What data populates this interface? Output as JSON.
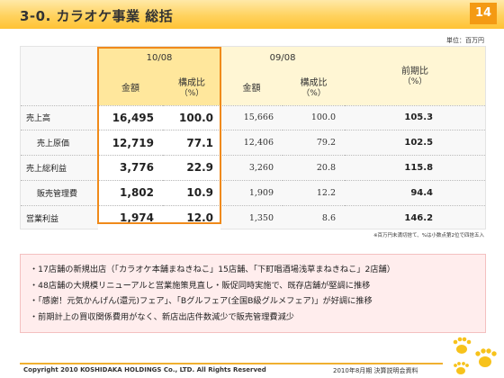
{
  "header": {
    "title": "3-0. カラオケ事業 総括",
    "page_number": "14"
  },
  "unit_note": "単位：百万円",
  "table": {
    "group_headers": {
      "current": "10/08",
      "previous": "09/08",
      "ratio": "前期比",
      "ratio_unit": "（%）"
    },
    "sub_headers": {
      "amount": "金額",
      "composition": "構成比",
      "composition_unit": "（%）"
    },
    "rows": [
      {
        "label": "売上高",
        "cur_amount": "16,495",
        "cur_comp": "100.0",
        "prev_amount": "15,666",
        "prev_comp": "100.0",
        "ratio": "105.3"
      },
      {
        "label": "売上原価",
        "cur_amount": "12,719",
        "cur_comp": "77.1",
        "prev_amount": "12,406",
        "prev_comp": "79.2",
        "ratio": "102.5"
      },
      {
        "label": "売上総利益",
        "cur_amount": "3,776",
        "cur_comp": "22.9",
        "prev_amount": "3,260",
        "prev_comp": "20.8",
        "ratio": "115.8"
      },
      {
        "label": "販売管理費",
        "cur_amount": "1,802",
        "cur_comp": "10.9",
        "prev_amount": "1,909",
        "prev_comp": "12.2",
        "ratio": "94.4"
      },
      {
        "label": "営業利益",
        "cur_amount": "1,974",
        "cur_comp": "12.0",
        "prev_amount": "1,350",
        "prev_comp": "8.6",
        "ratio": "146.2"
      }
    ]
  },
  "footnote": "※百万円未満切捨て、%は小数点第2位で四捨五入",
  "bullets": [
    "・17店舗の新規出店（「カラオケ本舗まねきねこ」15店舗、「下町唱酒場浅草まねきねこ」2店舗）",
    "・48店舗の大規模リニューアルと営業施策見直し・販促同時実施で、既存店舗が堅調に推移",
    "・「感謝！元気かんげん(還元)フェア」、「Bグルフェア(全国B級グルメフェア)」が好調に推移",
    "・前期計上の買収関係費用がなく、新店出店件数減少で販売管理費減少"
  ],
  "footer": {
    "copyright": "Copyright 2010 KOSHIDAKA HOLDINGS Co., LTD. All Rights Reserved",
    "document": "2010年8月期 決算説明会資料"
  },
  "colors": {
    "accent": "#f49a13",
    "frame": "#f08a1a",
    "header_gold": "#ffd25e",
    "bullet_bg": "#ffeded"
  },
  "icons": [
    "paw-prints-icon"
  ]
}
